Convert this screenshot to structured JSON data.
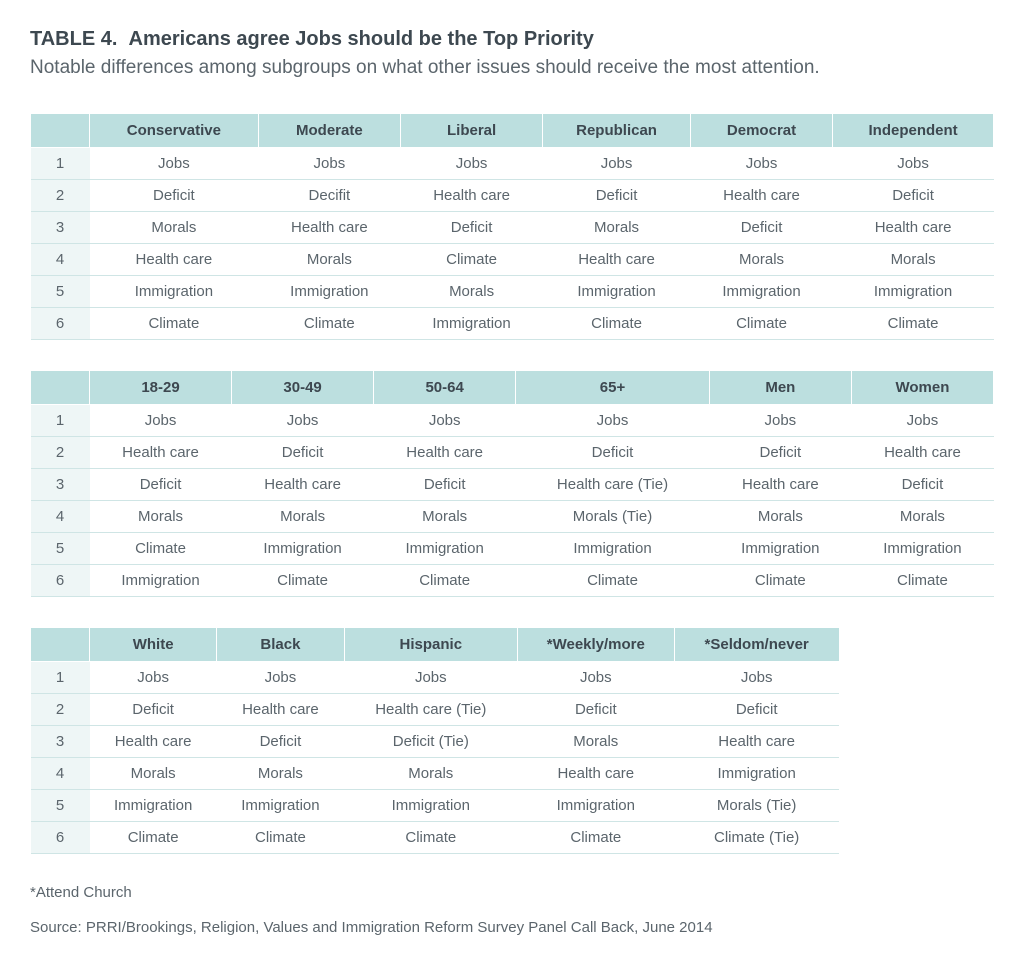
{
  "title_prefix": "TABLE 4.",
  "title_text": "Americans agree Jobs should be the Top Priority",
  "subtitle": "Notable differences among subgroups on what other issues should receive the most attention.",
  "colors": {
    "header_bg": "#bcdfdf",
    "rank_bg": "#eef6f6",
    "row_border": "#cfe5e5",
    "title_text": "#3d4850",
    "body_text": "#5b656c",
    "page_bg": "#ffffff"
  },
  "typography": {
    "title_fontsize": 20,
    "subtitle_fontsize": 19,
    "cell_fontsize": 15,
    "title_weight": 700
  },
  "tables": [
    {
      "columns": [
        "Conservative",
        "Moderate",
        "Liberal",
        "Republican",
        "Democrat",
        "Independent"
      ],
      "rows": [
        [
          "Jobs",
          "Jobs",
          "Jobs",
          "Jobs",
          "Jobs",
          "Jobs"
        ],
        [
          "Deficit",
          "Decifit",
          "Health care",
          "Deficit",
          "Health care",
          "Deficit"
        ],
        [
          "Morals",
          "Health care",
          "Deficit",
          "Morals",
          "Deficit",
          "Health care"
        ],
        [
          "Health care",
          "Morals",
          "Climate",
          "Health care",
          "Morals",
          "Morals"
        ],
        [
          "Immigration",
          "Immigration",
          "Morals",
          "Immigration",
          "Immigration",
          "Immigration"
        ],
        [
          "Climate",
          "Climate",
          "Immigration",
          "Climate",
          "Climate",
          "Climate"
        ]
      ]
    },
    {
      "columns": [
        "18-29",
        "30-49",
        "50-64",
        "65+",
        "Men",
        "Women"
      ],
      "rows": [
        [
          "Jobs",
          "Jobs",
          "Jobs",
          "Jobs",
          "Jobs",
          "Jobs"
        ],
        [
          "Health care",
          "Deficit",
          "Health care",
          "Deficit",
          "Deficit",
          "Health care"
        ],
        [
          "Deficit",
          "Health care",
          "Deficit",
          "Health care (Tie)",
          "Health care",
          "Deficit"
        ],
        [
          "Morals",
          "Morals",
          "Morals",
          "Morals (Tie)",
          "Morals",
          "Morals"
        ],
        [
          "Climate",
          "Immigration",
          "Immigration",
          "Immigration",
          "Immigration",
          "Immigration"
        ],
        [
          "Immigration",
          "Climate",
          "Climate",
          "Climate",
          "Climate",
          "Climate"
        ]
      ]
    },
    {
      "columns": [
        "White",
        "Black",
        "Hispanic",
        "*Weekly/more",
        "*Seldom/never"
      ],
      "rows": [
        [
          "Jobs",
          "Jobs",
          "Jobs",
          "Jobs",
          "Jobs"
        ],
        [
          "Deficit",
          "Health care",
          "Health care (Tie)",
          "Deficit",
          "Deficit"
        ],
        [
          "Health care",
          "Deficit",
          "Deficit (Tie)",
          "Morals",
          "Health care"
        ],
        [
          "Morals",
          "Morals",
          "Morals",
          "Health care",
          "Immigration"
        ],
        [
          "Immigration",
          "Immigration",
          "Immigration",
          "Immigration",
          "Morals (Tie)"
        ],
        [
          "Climate",
          "Climate",
          "Climate",
          "Climate",
          "Climate (Tie)"
        ]
      ]
    }
  ],
  "footnote": "*Attend Church",
  "source": "Source: PRRI/Brookings, Religion, Values and Immigration Reform Survey Panel Call Back, June 2014"
}
